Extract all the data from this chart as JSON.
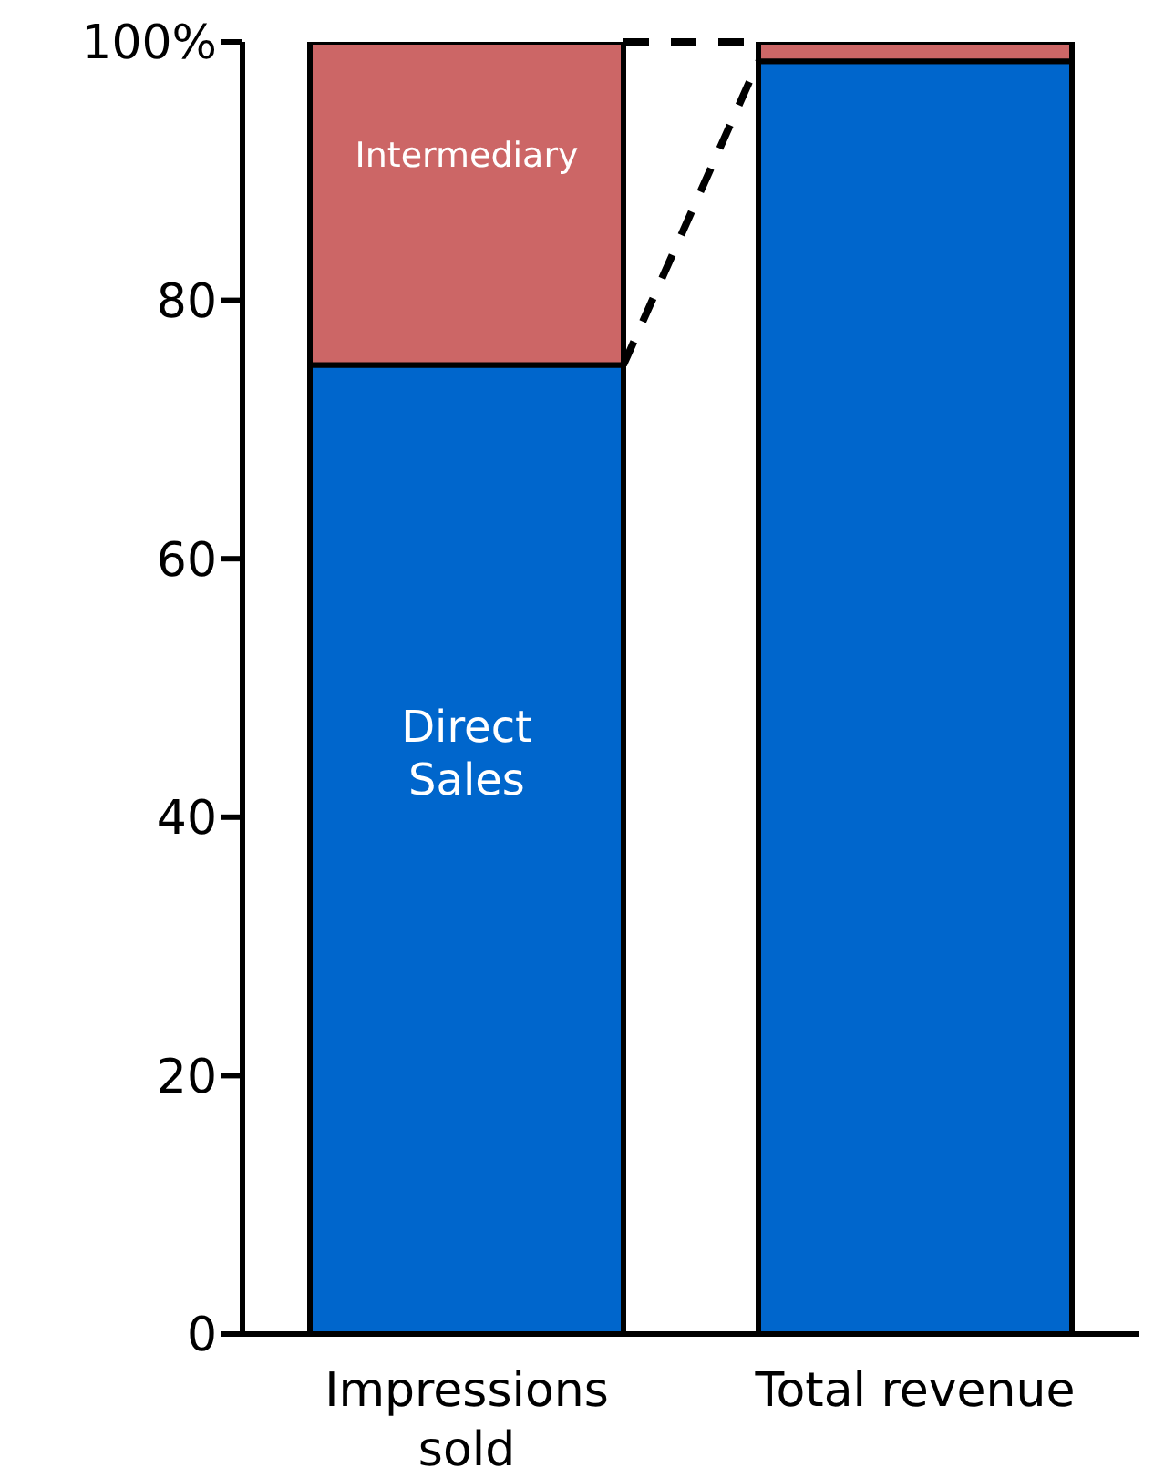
{
  "chart_data": {
    "type": "bar",
    "stacked": true,
    "categories": [
      "Impressions sold",
      "Total revenue"
    ],
    "series": [
      {
        "name": "Direct Sales",
        "color": "#0066cc",
        "values": [
          75,
          98.5
        ]
      },
      {
        "name": "Intermediary",
        "color": "#cc6666",
        "values": [
          25,
          1.5
        ]
      }
    ],
    "ylim": [
      0,
      100
    ],
    "yticks": [
      0,
      20,
      40,
      60,
      {
        "value": 80,
        "label": "80"
      },
      {
        "value": 100,
        "label": "100%"
      }
    ],
    "grid": false,
    "legend": false
  }
}
